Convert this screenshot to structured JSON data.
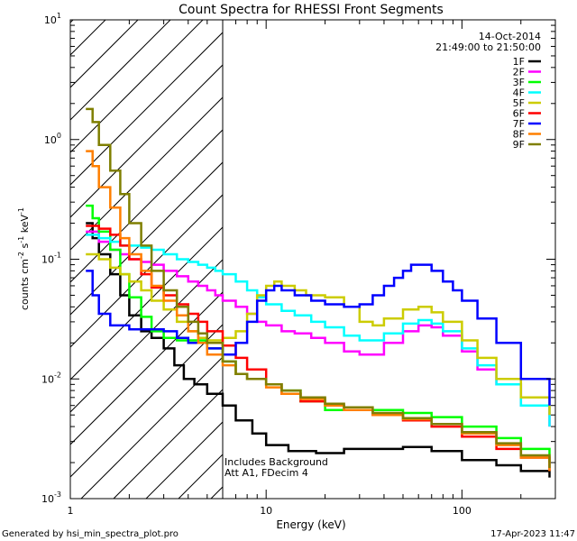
{
  "chart_data": {
    "type": "line",
    "title": "Count Spectra for RHESSI Front Segments",
    "xlabel": "Energy (keV)",
    "ylabel": "counts cm⁻² s⁻¹ keV⁻¹",
    "ylabel_parts": {
      "base": "counts cm",
      "e1": "-2",
      "mid": " s",
      "e2": "-1",
      "end": " keV",
      "e3": "-1"
    },
    "x_scale": "log",
    "y_scale": "log",
    "xlim": [
      1,
      300
    ],
    "ylim": [
      0.001,
      10
    ],
    "x_ticks": [
      {
        "value": 1,
        "label": "1"
      },
      {
        "value": 10,
        "label": "10"
      },
      {
        "value": 100,
        "label": "100"
      }
    ],
    "y_ticks": [
      {
        "value": 0.001,
        "base": "10",
        "exp": "-3"
      },
      {
        "value": 0.01,
        "base": "10",
        "exp": "-2"
      },
      {
        "value": 0.1,
        "base": "10",
        "exp": "-1"
      },
      {
        "value": 1,
        "base": "10",
        "exp": "0"
      },
      {
        "value": 10,
        "base": "10",
        "exp": "1"
      }
    ],
    "date": "14-Oct-2014",
    "time_range": "21:49:00 to 21:50:00",
    "hatched_max_energy": 6,
    "annotation_lines": [
      "Includes Background",
      "Att A1, FDecim 4"
    ],
    "footer_left": "Generated by hsi_min_spectra_plot.pro",
    "footer_right": "17-Apr-2023 11:47",
    "series": [
      {
        "name": "1F",
        "color": "#000000"
      },
      {
        "name": "2F",
        "color": "#ff00ff"
      },
      {
        "name": "3F",
        "color": "#00ff00"
      },
      {
        "name": "4F",
        "color": "#00ffff"
      },
      {
        "name": "5F",
        "color": "#cccc00"
      },
      {
        "name": "6F",
        "color": "#ff0000"
      },
      {
        "name": "7F",
        "color": "#0000ff"
      },
      {
        "name": "8F",
        "color": "#ff7f00"
      },
      {
        "name": "9F",
        "color": "#7f7f00"
      }
    ],
    "series_points": {
      "1F": [
        [
          1.2,
          0.2
        ],
        [
          1.3,
          0.15
        ],
        [
          1.4,
          0.11
        ],
        [
          1.6,
          0.075
        ],
        [
          1.8,
          0.05
        ],
        [
          2.0,
          0.034
        ],
        [
          2.3,
          0.025
        ],
        [
          2.6,
          0.022
        ],
        [
          3.0,
          0.018
        ],
        [
          3.4,
          0.013
        ],
        [
          3.8,
          0.01
        ],
        [
          4.3,
          0.009
        ],
        [
          5.0,
          0.0075
        ],
        [
          6.0,
          0.006
        ],
        [
          7.0,
          0.0045
        ],
        [
          8.5,
          0.0035
        ],
        [
          10,
          0.0028
        ],
        [
          13,
          0.0025
        ],
        [
          18,
          0.0024
        ],
        [
          25,
          0.0026
        ],
        [
          35,
          0.0026
        ],
        [
          50,
          0.0027
        ],
        [
          70,
          0.0025
        ],
        [
          100,
          0.0021
        ],
        [
          150,
          0.0019
        ],
        [
          200,
          0.0017
        ],
        [
          280,
          0.0015
        ]
      ],
      "2F": [
        [
          1.2,
          0.17
        ],
        [
          1.4,
          0.14
        ],
        [
          1.6,
          0.12
        ],
        [
          1.8,
          0.11
        ],
        [
          2.0,
          0.1
        ],
        [
          2.3,
          0.095
        ],
        [
          2.6,
          0.09
        ],
        [
          3.0,
          0.08
        ],
        [
          3.5,
          0.072
        ],
        [
          4.0,
          0.065
        ],
        [
          4.5,
          0.06
        ],
        [
          5.0,
          0.055
        ],
        [
          5.5,
          0.05
        ],
        [
          6.0,
          0.045
        ],
        [
          7.0,
          0.04
        ],
        [
          8.0,
          0.035
        ],
        [
          9.0,
          0.03
        ],
        [
          10,
          0.028
        ],
        [
          12,
          0.025
        ],
        [
          14,
          0.024
        ],
        [
          17,
          0.022
        ],
        [
          20,
          0.02
        ],
        [
          25,
          0.017
        ],
        [
          30,
          0.016
        ],
        [
          40,
          0.02
        ],
        [
          50,
          0.025
        ],
        [
          60,
          0.028
        ],
        [
          70,
          0.027
        ],
        [
          80,
          0.023
        ],
        [
          100,
          0.017
        ],
        [
          120,
          0.012
        ],
        [
          150,
          0.009
        ],
        [
          200,
          0.006
        ],
        [
          280,
          0.004
        ]
      ],
      "3F": [
        [
          1.2,
          0.28
        ],
        [
          1.3,
          0.22
        ],
        [
          1.4,
          0.17
        ],
        [
          1.6,
          0.12
        ],
        [
          1.8,
          0.075
        ],
        [
          2.0,
          0.048
        ],
        [
          2.3,
          0.033
        ],
        [
          2.6,
          0.025
        ],
        [
          3.0,
          0.022
        ],
        [
          3.5,
          0.021
        ],
        [
          4.0,
          0.021
        ],
        [
          5.0,
          0.018
        ],
        [
          6.0,
          0.014
        ],
        [
          7.0,
          0.011
        ],
        [
          8.0,
          0.01
        ],
        [
          10,
          0.009
        ],
        [
          12,
          0.008
        ],
        [
          15,
          0.0065
        ],
        [
          20,
          0.0055
        ],
        [
          25,
          0.0055
        ],
        [
          35,
          0.0055
        ],
        [
          50,
          0.0052
        ],
        [
          70,
          0.0048
        ],
        [
          100,
          0.004
        ],
        [
          150,
          0.0032
        ],
        [
          200,
          0.0026
        ],
        [
          280,
          0.002
        ]
      ],
      "4F": [
        [
          1.2,
          0.16
        ],
        [
          1.4,
          0.15
        ],
        [
          1.6,
          0.14
        ],
        [
          1.8,
          0.13
        ],
        [
          2.0,
          0.13
        ],
        [
          2.3,
          0.125
        ],
        [
          2.6,
          0.12
        ],
        [
          3.0,
          0.11
        ],
        [
          3.5,
          0.1
        ],
        [
          4.0,
          0.095
        ],
        [
          4.5,
          0.09
        ],
        [
          5.0,
          0.085
        ],
        [
          5.5,
          0.08
        ],
        [
          6.0,
          0.075
        ],
        [
          7.0,
          0.065
        ],
        [
          8.0,
          0.055
        ],
        [
          9.0,
          0.048
        ],
        [
          10,
          0.042
        ],
        [
          12,
          0.037
        ],
        [
          14,
          0.034
        ],
        [
          17,
          0.03
        ],
        [
          20,
          0.027
        ],
        [
          25,
          0.023
        ],
        [
          30,
          0.021
        ],
        [
          40,
          0.024
        ],
        [
          50,
          0.029
        ],
        [
          60,
          0.031
        ],
        [
          70,
          0.029
        ],
        [
          80,
          0.025
        ],
        [
          100,
          0.018
        ],
        [
          120,
          0.013
        ],
        [
          150,
          0.009
        ],
        [
          200,
          0.006
        ],
        [
          280,
          0.004
        ]
      ],
      "5F": [
        [
          1.2,
          0.11
        ],
        [
          1.4,
          0.1
        ],
        [
          1.6,
          0.085
        ],
        [
          1.8,
          0.075
        ],
        [
          2.0,
          0.065
        ],
        [
          2.3,
          0.055
        ],
        [
          2.6,
          0.045
        ],
        [
          3.0,
          0.038
        ],
        [
          3.5,
          0.03
        ],
        [
          4.0,
          0.025
        ],
        [
          4.5,
          0.022
        ],
        [
          5.0,
          0.021
        ],
        [
          6.0,
          0.022
        ],
        [
          7.0,
          0.025
        ],
        [
          8.0,
          0.035
        ],
        [
          9.0,
          0.05
        ],
        [
          10,
          0.06
        ],
        [
          11,
          0.065
        ],
        [
          12,
          0.06
        ],
        [
          14,
          0.055
        ],
        [
          16,
          0.05
        ],
        [
          18,
          0.05
        ],
        [
          20,
          0.048
        ],
        [
          25,
          0.04
        ],
        [
          30,
          0.03
        ],
        [
          35,
          0.028
        ],
        [
          40,
          0.032
        ],
        [
          50,
          0.038
        ],
        [
          60,
          0.04
        ],
        [
          70,
          0.036
        ],
        [
          80,
          0.03
        ],
        [
          100,
          0.021
        ],
        [
          120,
          0.015
        ],
        [
          150,
          0.01
        ],
        [
          200,
          0.007
        ],
        [
          280,
          0.005
        ]
      ],
      "6F": [
        [
          1.2,
          0.19
        ],
        [
          1.4,
          0.18
        ],
        [
          1.6,
          0.16
        ],
        [
          1.8,
          0.13
        ],
        [
          2.0,
          0.1
        ],
        [
          2.3,
          0.075
        ],
        [
          2.6,
          0.058
        ],
        [
          3.0,
          0.05
        ],
        [
          3.5,
          0.042
        ],
        [
          4.0,
          0.035
        ],
        [
          4.5,
          0.03
        ],
        [
          5.0,
          0.025
        ],
        [
          6.0,
          0.019
        ],
        [
          7.0,
          0.015
        ],
        [
          8.0,
          0.012
        ],
        [
          10,
          0.009
        ],
        [
          12,
          0.0075
        ],
        [
          15,
          0.0065
        ],
        [
          20,
          0.006
        ],
        [
          25,
          0.0055
        ],
        [
          35,
          0.005
        ],
        [
          50,
          0.0045
        ],
        [
          70,
          0.004
        ],
        [
          100,
          0.0033
        ],
        [
          150,
          0.0026
        ],
        [
          200,
          0.0022
        ],
        [
          280,
          0.0017
        ]
      ],
      "7F": [
        [
          1.2,
          0.08
        ],
        [
          1.3,
          0.05
        ],
        [
          1.4,
          0.035
        ],
        [
          1.6,
          0.028
        ],
        [
          2.0,
          0.026
        ],
        [
          2.5,
          0.026
        ],
        [
          3.0,
          0.025
        ],
        [
          3.5,
          0.022
        ],
        [
          4.0,
          0.02
        ],
        [
          5.0,
          0.018
        ],
        [
          6.0,
          0.016
        ],
        [
          7.0,
          0.02
        ],
        [
          8.0,
          0.03
        ],
        [
          9.0,
          0.045
        ],
        [
          10,
          0.055
        ],
        [
          11,
          0.06
        ],
        [
          12,
          0.055
        ],
        [
          14,
          0.05
        ],
        [
          17,
          0.045
        ],
        [
          20,
          0.042
        ],
        [
          25,
          0.04
        ],
        [
          30,
          0.042
        ],
        [
          35,
          0.05
        ],
        [
          40,
          0.06
        ],
        [
          45,
          0.07
        ],
        [
          50,
          0.08
        ],
        [
          55,
          0.09
        ],
        [
          60,
          0.09
        ],
        [
          70,
          0.08
        ],
        [
          80,
          0.065
        ],
        [
          90,
          0.055
        ],
        [
          100,
          0.045
        ],
        [
          120,
          0.032
        ],
        [
          150,
          0.02
        ],
        [
          200,
          0.01
        ],
        [
          280,
          0.006
        ]
      ],
      "8F": [
        [
          1.2,
          0.8
        ],
        [
          1.3,
          0.6
        ],
        [
          1.4,
          0.4
        ],
        [
          1.6,
          0.27
        ],
        [
          1.8,
          0.15
        ],
        [
          2.0,
          0.11
        ],
        [
          2.3,
          0.08
        ],
        [
          2.6,
          0.06
        ],
        [
          3.0,
          0.045
        ],
        [
          3.5,
          0.034
        ],
        [
          4.0,
          0.025
        ],
        [
          4.5,
          0.02
        ],
        [
          5.0,
          0.016
        ],
        [
          6.0,
          0.013
        ],
        [
          7.0,
          0.011
        ],
        [
          8.0,
          0.01
        ],
        [
          10,
          0.0085
        ],
        [
          12,
          0.0075
        ],
        [
          15,
          0.0068
        ],
        [
          20,
          0.006
        ],
        [
          25,
          0.0055
        ],
        [
          35,
          0.005
        ],
        [
          50,
          0.0046
        ],
        [
          70,
          0.0042
        ],
        [
          100,
          0.0035
        ],
        [
          150,
          0.0028
        ],
        [
          200,
          0.0022
        ],
        [
          280,
          0.0017
        ]
      ],
      "9F": [
        [
          1.2,
          1.8
        ],
        [
          1.3,
          1.4
        ],
        [
          1.4,
          0.9
        ],
        [
          1.6,
          0.55
        ],
        [
          1.8,
          0.35
        ],
        [
          2.0,
          0.2
        ],
        [
          2.3,
          0.13
        ],
        [
          2.6,
          0.08
        ],
        [
          3.0,
          0.055
        ],
        [
          3.5,
          0.04
        ],
        [
          4.0,
          0.03
        ],
        [
          4.5,
          0.024
        ],
        [
          5.0,
          0.02
        ],
        [
          6.0,
          0.014
        ],
        [
          7.0,
          0.011
        ],
        [
          8.0,
          0.01
        ],
        [
          10,
          0.009
        ],
        [
          12,
          0.008
        ],
        [
          15,
          0.007
        ],
        [
          20,
          0.0062
        ],
        [
          25,
          0.0058
        ],
        [
          35,
          0.0052
        ],
        [
          50,
          0.0047
        ],
        [
          70,
          0.0042
        ],
        [
          100,
          0.0036
        ],
        [
          150,
          0.0029
        ],
        [
          200,
          0.0023
        ],
        [
          280,
          0.0018
        ]
      ]
    }
  }
}
